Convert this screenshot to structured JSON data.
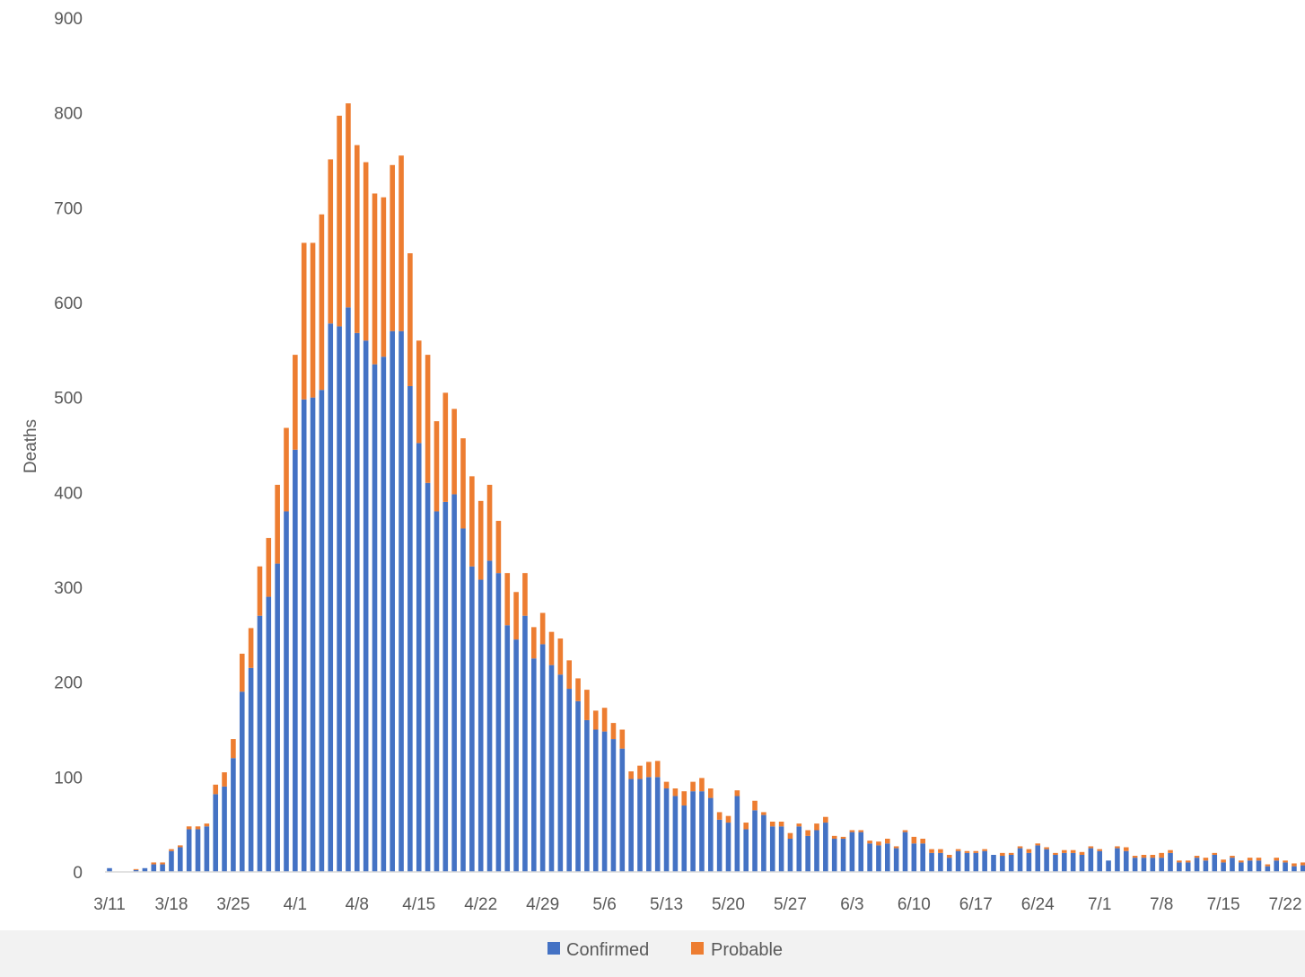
{
  "chart_data": {
    "type": "bar",
    "stacked": true,
    "title": "",
    "xlabel": "",
    "ylabel": "Deaths",
    "ylim": [
      0,
      900
    ],
    "y_ticks": [
      0,
      100,
      200,
      300,
      400,
      500,
      600,
      700,
      800,
      900
    ],
    "x_tick_labels": [
      "3/11",
      "3/18",
      "3/25",
      "4/1",
      "4/8",
      "4/15",
      "4/22",
      "4/29",
      "5/6",
      "5/13",
      "5/20",
      "5/27",
      "6/3",
      "6/10",
      "6/17",
      "6/24",
      "7/1",
      "7/8",
      "7/15",
      "7/22"
    ],
    "x_tick_interval_days": 7,
    "grid": false,
    "legend_position": "bottom",
    "colors": {
      "Confirmed": "#4472c4",
      "Probable": "#ed7d31",
      "axis": "#d9d9d9"
    },
    "series": [
      {
        "name": "Confirmed",
        "values": [
          4,
          0,
          0,
          2,
          4,
          8,
          8,
          22,
          26,
          45,
          45,
          48,
          82,
          90,
          120,
          190,
          215,
          270,
          290,
          325,
          380,
          445,
          498,
          500,
          508,
          578,
          575,
          595,
          568,
          560,
          535,
          543,
          570,
          570,
          512,
          452,
          410,
          380,
          390,
          398,
          362,
          322,
          308,
          328,
          315,
          260,
          245,
          270,
          225,
          240,
          218,
          208,
          193,
          180,
          160,
          150,
          148,
          140,
          130,
          98,
          98,
          100,
          100,
          88,
          80,
          70,
          85,
          85,
          78,
          55,
          52,
          80,
          45,
          65,
          60,
          48,
          48,
          35,
          48,
          38,
          44,
          52,
          35,
          35,
          42,
          42,
          30,
          28,
          30,
          25,
          42,
          30,
          30,
          20,
          20,
          15,
          22,
          20,
          20,
          22,
          18,
          17,
          18,
          25,
          20,
          28,
          24,
          18,
          20,
          20,
          18,
          25,
          22,
          12,
          25,
          22,
          15,
          15,
          15,
          15,
          20,
          10,
          10,
          15,
          12,
          18,
          10,
          15,
          10,
          12,
          12,
          6,
          12,
          10,
          6,
          7,
          5,
          8
        ],
        "note_values": "daily confirmed deaths"
      },
      {
        "name": "Probable",
        "values": [
          0,
          0,
          0,
          1,
          0,
          2,
          2,
          2,
          2,
          3,
          3,
          3,
          10,
          15,
          20,
          40,
          42,
          52,
          62,
          83,
          88,
          100,
          165,
          163,
          185,
          173,
          222,
          215,
          198,
          188,
          180,
          168,
          175,
          185,
          140,
          108,
          135,
          95,
          115,
          90,
          95,
          95,
          83,
          80,
          55,
          55,
          50,
          45,
          33,
          33,
          35,
          38,
          30,
          24,
          32,
          20,
          25,
          17,
          20,
          8,
          14,
          16,
          17,
          7,
          8,
          15,
          10,
          14,
          10,
          8,
          7,
          6,
          7,
          10,
          3,
          5,
          5,
          6,
          3,
          6,
          7,
          6,
          3,
          2,
          2,
          2,
          3,
          4,
          5,
          2,
          2,
          7,
          5,
          4,
          4,
          3,
          2,
          2,
          2,
          2,
          0,
          3,
          2,
          2,
          4,
          2,
          2,
          2,
          3,
          3,
          3,
          2,
          2,
          0,
          2,
          4,
          2,
          3,
          3,
          5,
          3,
          2,
          2,
          2,
          3,
          2,
          3,
          2,
          2,
          3,
          3,
          2,
          3,
          2,
          3,
          3,
          1,
          3
        ]
      }
    ],
    "x_start_label": "3/11",
    "legend": {
      "entries": [
        "Confirmed",
        "Probable"
      ]
    }
  }
}
